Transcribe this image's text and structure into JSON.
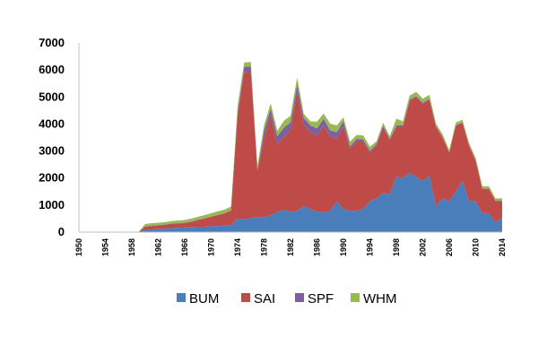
{
  "chart_data": {
    "type": "area",
    "stacked": true,
    "title": "",
    "xlabel": "",
    "ylabel": "",
    "xlim": [
      1950,
      2014
    ],
    "ylim": [
      0,
      7000
    ],
    "y_ticks": [
      0,
      1000,
      2000,
      3000,
      4000,
      5000,
      6000,
      7000
    ],
    "y_tick_labels": [
      "0",
      "1000",
      "2000",
      "3000",
      "4000",
      "5000",
      "6000",
      "7000"
    ],
    "x_ticks": [
      1950,
      1954,
      1958,
      1962,
      1966,
      1970,
      1974,
      1978,
      1982,
      1986,
      1990,
      1994,
      1998,
      2002,
      2006,
      2010,
      2014
    ],
    "x_tick_labels": [
      "1950",
      "1954",
      "1958",
      "1962",
      "1966",
      "1970",
      "1974",
      "1978",
      "1982",
      "1986",
      "1990",
      "1994",
      "1998",
      "2002",
      "2006",
      "2010",
      "2014"
    ],
    "grid": false,
    "legend_position": "bottom",
    "x": [
      1950,
      1951,
      1952,
      1953,
      1954,
      1955,
      1956,
      1957,
      1958,
      1959,
      1960,
      1961,
      1962,
      1963,
      1964,
      1965,
      1966,
      1967,
      1968,
      1969,
      1970,
      1971,
      1972,
      1973,
      1974,
      1975,
      1976,
      1977,
      1978,
      1979,
      1980,
      1981,
      1982,
      1983,
      1984,
      1985,
      1986,
      1987,
      1988,
      1989,
      1990,
      1991,
      1992,
      1993,
      1994,
      1995,
      1996,
      1997,
      1998,
      1999,
      2000,
      2001,
      2002,
      2003,
      2004,
      2005,
      2006,
      2007,
      2008,
      2009,
      2010,
      2011,
      2012,
      2013,
      2014
    ],
    "series": [
      {
        "name": "BUM",
        "color": "#4a7ebb",
        "values": [
          0,
          0,
          0,
          0,
          0,
          0,
          0,
          0,
          0,
          0,
          80,
          100,
          120,
          130,
          150,
          160,
          170,
          190,
          200,
          200,
          220,
          230,
          240,
          250,
          500,
          480,
          520,
          560,
          560,
          620,
          750,
          820,
          760,
          780,
          980,
          850,
          760,
          740,
          780,
          1150,
          850,
          780,
          800,
          850,
          1150,
          1250,
          1450,
          1400,
          2050,
          2000,
          2200,
          2050,
          1900,
          2100,
          950,
          1250,
          1150,
          1500,
          1900,
          1150,
          1150,
          700,
          700,
          350,
          550
        ]
      },
      {
        "name": "SAI",
        "color": "#be4b48",
        "values": [
          0,
          0,
          0,
          0,
          0,
          0,
          0,
          0,
          0,
          0,
          120,
          130,
          130,
          140,
          160,
          160,
          170,
          190,
          250,
          300,
          350,
          400,
          450,
          550,
          3900,
          5450,
          5400,
          1700,
          2900,
          3700,
          2500,
          2700,
          3000,
          4450,
          3000,
          2850,
          2800,
          3200,
          2750,
          2300,
          3050,
          2300,
          2550,
          2500,
          1800,
          1950,
          2450,
          2000,
          1850,
          1900,
          2650,
          2950,
          2850,
          2800,
          2950,
          2250,
          1800,
          2450,
          2150,
          2050,
          1500,
          900,
          900,
          800,
          600
        ]
      },
      {
        "name": "SPF",
        "color": "#7d60a0",
        "values": [
          0,
          0,
          0,
          0,
          0,
          0,
          0,
          0,
          0,
          0,
          10,
          10,
          10,
          10,
          10,
          10,
          10,
          10,
          10,
          10,
          10,
          10,
          10,
          10,
          30,
          200,
          200,
          50,
          300,
          250,
          300,
          350,
          300,
          250,
          250,
          250,
          280,
          250,
          230,
          250,
          200,
          100,
          100,
          80,
          70,
          60,
          50,
          50,
          50,
          50,
          50,
          40,
          40,
          30,
          20,
          20,
          10,
          10,
          10,
          10,
          10,
          10,
          10,
          10,
          10
        ]
      },
      {
        "name": "WHM",
        "color": "#98b954",
        "values": [
          0,
          0,
          0,
          0,
          0,
          0,
          0,
          0,
          0,
          0,
          90,
          90,
          90,
          90,
          90,
          100,
          100,
          110,
          110,
          120,
          120,
          130,
          130,
          140,
          250,
          150,
          180,
          150,
          200,
          200,
          200,
          250,
          250,
          250,
          150,
          150,
          250,
          200,
          260,
          250,
          150,
          170,
          150,
          150,
          150,
          100,
          100,
          100,
          250,
          150,
          150,
          150,
          150,
          150,
          100,
          100,
          80,
          100,
          100,
          90,
          80,
          90,
          90,
          90,
          90
        ]
      }
    ]
  }
}
